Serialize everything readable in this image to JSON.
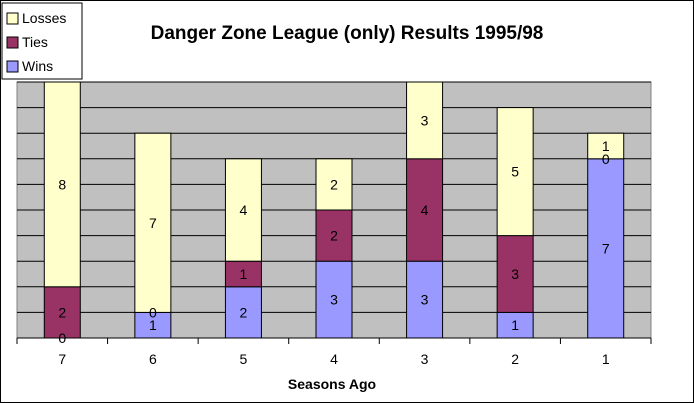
{
  "chart_data": {
    "type": "bar",
    "stacked": true,
    "title": "Danger Zone League (only) Results 1995/98",
    "xlabel": "Seasons Ago",
    "ylabel": "",
    "categories": [
      "7",
      "6",
      "5",
      "4",
      "3",
      "2",
      "1"
    ],
    "ylim": [
      0,
      10
    ],
    "grid": true,
    "legend_position": "top-left",
    "series": [
      {
        "name": "Wins",
        "color": "#9999ff",
        "values": [
          0,
          1,
          2,
          3,
          3,
          1,
          7
        ]
      },
      {
        "name": "Ties",
        "color": "#993366",
        "values": [
          2,
          0,
          1,
          2,
          4,
          3,
          0
        ]
      },
      {
        "name": "Losses",
        "color": "#ffffcc",
        "values": [
          8,
          7,
          4,
          2,
          3,
          5,
          1
        ]
      }
    ],
    "plot_background": "#c0c0c0"
  }
}
